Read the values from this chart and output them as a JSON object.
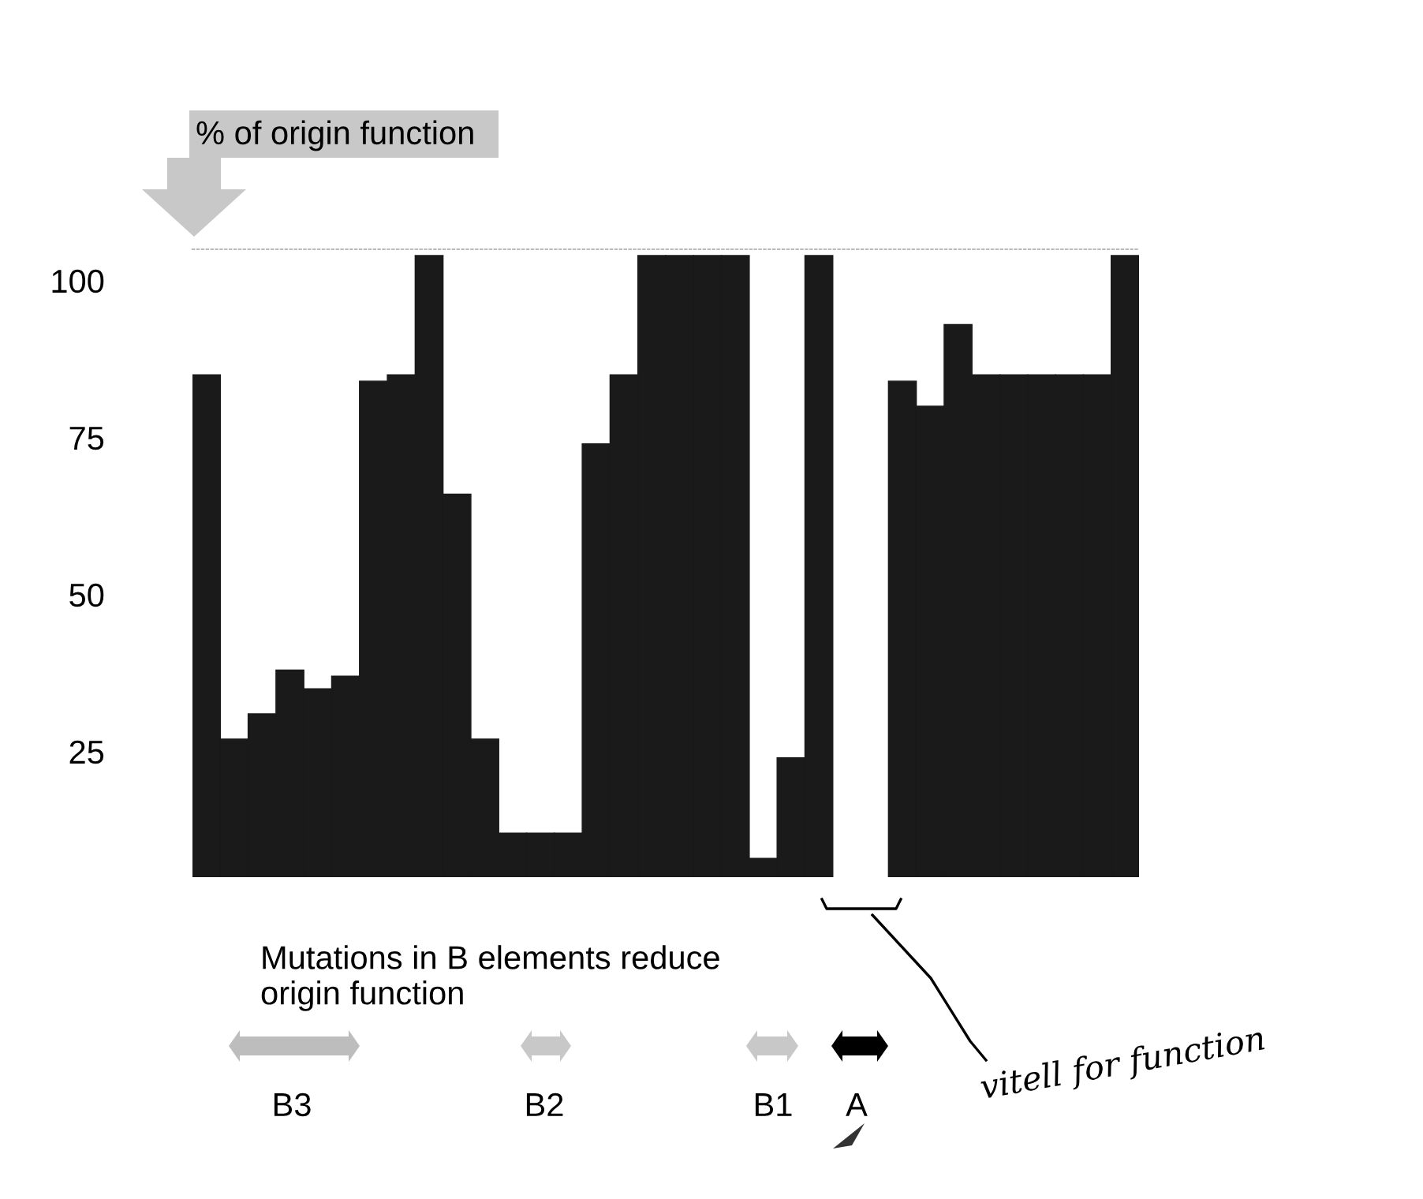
{
  "chart_data": {
    "type": "bar",
    "ylabel": "% of origin function",
    "categories": [
      null,
      null,
      null,
      null,
      null,
      null,
      null,
      null,
      null,
      null,
      null,
      null,
      null,
      null,
      null,
      null,
      null,
      null,
      null,
      null,
      null,
      null,
      null,
      null,
      null,
      null,
      null,
      null,
      null,
      null,
      null,
      null,
      null,
      null
    ],
    "values": [
      85,
      27,
      31,
      38,
      35,
      37,
      84,
      85,
      104,
      66,
      27,
      12,
      12,
      12,
      74,
      85,
      104,
      104,
      104,
      104,
      8,
      24,
      104,
      null,
      null,
      84,
      80,
      93,
      85,
      85,
      85,
      85,
      85,
      104
    ],
    "color": "#1a1a1a",
    "ylim": [
      5,
      105
    ],
    "yticks": [
      25,
      50,
      75,
      100
    ],
    "grid": false,
    "legend": false,
    "annotations": [
      "Mutations in B elements reduce\norigin function",
      "B3",
      "B2",
      "B1",
      "A",
      "vitell for function"
    ]
  }
}
